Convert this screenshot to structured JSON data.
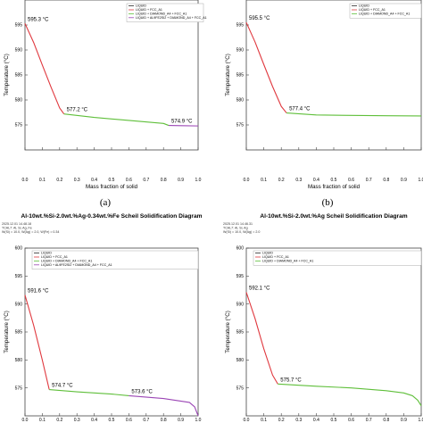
{
  "chart_data": [
    {
      "type": "line",
      "caption": "(a)",
      "title": "",
      "meta": [],
      "xlabel": "Mass fraction of solid",
      "ylabel": "Temperature (°C)",
      "xlim": [
        0,
        1
      ],
      "ylim": [
        570,
        600
      ],
      "xticks": [
        "0.0",
        "0.1",
        "0.2",
        "0.3",
        "0.4",
        "0.5",
        "0.6",
        "0.7",
        "0.8",
        "0.9",
        "1.0"
      ],
      "yticks": [
        "575",
        "580",
        "585",
        "590",
        "595"
      ],
      "grid": false,
      "legend_position": "top-right",
      "series": [
        {
          "name": "LIQUID + FCC_A1",
          "color": "#e0383e",
          "x": [
            0,
            0.05,
            0.1,
            0.15,
            0.2,
            0.225
          ],
          "y": [
            595.3,
            591.5,
            587.0,
            582.6,
            578.4,
            577.2
          ]
        },
        {
          "name": "LIQUID + DIAMOND_A4 + FCC_A1",
          "color": "#5fbf3a",
          "x": [
            0.225,
            0.4,
            0.6,
            0.8,
            0.83
          ],
          "y": [
            577.2,
            576.5,
            575.9,
            575.3,
            574.9
          ]
        },
        {
          "name": "LIQUID + AL9FE2SI2 + DIAMOND_A4 + FCC_A1",
          "color": "#9b45b5",
          "x": [
            0.83,
            0.9,
            1.0
          ],
          "y": [
            574.9,
            574.85,
            574.8
          ]
        }
      ],
      "legend_entries": [
        "LIQUID",
        "LIQUID + FCC_A1",
        "LIQUID + DIAMOND_A4 + FCC_A1",
        "LIQUID + AL9FE2SI2 + DIAMOND_A4 + FCC_A1"
      ],
      "legend_colors": [
        "#2a2a2a",
        "#e0383e",
        "#5fbf3a",
        "#9b45b5"
      ],
      "annotations": [
        {
          "text": "595.3 °C",
          "x": 0.0,
          "y": 595.3
        },
        {
          "text": "577.2 °C",
          "x": 0.225,
          "y": 577.2
        },
        {
          "text": "574.9 °C",
          "x": 0.83,
          "y": 574.9
        }
      ]
    },
    {
      "type": "line",
      "caption": "(b)",
      "title": "",
      "meta": [],
      "xlabel": "Mass fraction of solid",
      "ylabel": "Temperature (°C)",
      "xlim": [
        0,
        1
      ],
      "ylim": [
        570,
        600
      ],
      "xticks": [
        "0.0",
        "0.1",
        "0.2",
        "0.3",
        "0.4",
        "0.5",
        "0.6",
        "0.7",
        "0.8",
        "0.9",
        "1.0"
      ],
      "yticks": [
        "575",
        "580",
        "585",
        "590",
        "595"
      ],
      "grid": false,
      "legend_position": "top-right",
      "series": [
        {
          "name": "LIQUID + FCC_A1",
          "color": "#e0383e",
          "x": [
            0,
            0.05,
            0.1,
            0.15,
            0.2,
            0.23
          ],
          "y": [
            595.5,
            591.6,
            587.1,
            582.7,
            578.7,
            577.4
          ]
        },
        {
          "name": "LIQUID + DIAMOND_A4 + FCC_A1",
          "color": "#5fbf3a",
          "x": [
            0.23,
            0.4,
            0.6,
            0.8,
            1.0
          ],
          "y": [
            577.4,
            577.0,
            576.9,
            576.85,
            576.8
          ]
        }
      ],
      "legend_entries": [
        "LIQUID",
        "LIQUID + FCC_A1",
        "LIQUID + DIAMOND_A4 + FCC_A1"
      ],
      "legend_colors": [
        "#2a2a2a",
        "#e0383e",
        "#5fbf3a"
      ],
      "annotations": [
        {
          "text": "595.5 °C",
          "x": 0.0,
          "y": 595.5
        },
        {
          "text": "577.4 °C",
          "x": 0.23,
          "y": 577.4
        }
      ]
    },
    {
      "type": "line",
      "caption": "",
      "title": "Al-10wt.%Si-2.0wt.%Ag-0.34wt.%Fe Scheil Solidification Diagram",
      "meta": [
        "2025.12.01 14.48.18",
        "TCAL7: Al, Si, Ag, Fe",
        "W(Si) = 10.0, W(Ag) = 2.0, W(Fe) = 0.34"
      ],
      "xlabel": "",
      "ylabel": "Temperature (°C)",
      "xlim": [
        0,
        1
      ],
      "ylim": [
        570,
        600
      ],
      "xticks": [
        "0.0",
        "0.1",
        "0.2",
        "0.3",
        "0.4",
        "0.5",
        "0.6",
        "0.7",
        "0.8",
        "0.9",
        "1.0"
      ],
      "yticks": [
        "575",
        "580",
        "585",
        "590",
        "595",
        "600"
      ],
      "grid": false,
      "legend_position": "top-right",
      "series": [
        {
          "name": "LIQUID + FCC_A1",
          "color": "#e0383e",
          "x": [
            0,
            0.05,
            0.1,
            0.14
          ],
          "y": [
            591.6,
            586.2,
            580.0,
            574.7
          ]
        },
        {
          "name": "LIQUID + DIAMOND_A4 + FCC_A1",
          "color": "#5fbf3a",
          "x": [
            0.14,
            0.3,
            0.5,
            0.6
          ],
          "y": [
            574.7,
            574.3,
            573.9,
            573.6
          ]
        },
        {
          "name": "LIQUID + AL9FE2SI2 + DIAMOND_A4 + FCC_A1",
          "color": "#9b45b5",
          "x": [
            0.6,
            0.8,
            0.95,
            0.98,
            0.99,
            1.0
          ],
          "y": [
            573.6,
            573.1,
            572.4,
            571.6,
            570.8,
            570.0
          ]
        }
      ],
      "legend_entries": [
        "LIQUID",
        "LIQUID + FCC_A1",
        "LIQUID + DIAMOND_A4 + FCC_A1",
        "LIQUID + AL9FE2SI2 + DIAMOND_A4 + FCC_A1"
      ],
      "legend_colors": [
        "#2a2a2a",
        "#e0383e",
        "#5fbf3a",
        "#9b45b5"
      ],
      "annotations": [
        {
          "text": "591.6 °C",
          "x": 0.0,
          "y": 591.6
        },
        {
          "text": "574.7 °C",
          "x": 0.14,
          "y": 574.7
        },
        {
          "text": "573.6 °C",
          "x": 0.6,
          "y": 573.6
        }
      ]
    },
    {
      "type": "line",
      "caption": "",
      "title": "Al-10wt.%Si-2.0wt.%Ag Scheil Solidification Diagram",
      "meta": [
        "2025.12.01 14.46.31",
        "TCAL7: Al, Si, Ag",
        "W(Si) = 10.0, W(Ag) = 2.0"
      ],
      "xlabel": "",
      "ylabel": "Temperature (°C)",
      "xlim": [
        0,
        1
      ],
      "ylim": [
        570,
        600
      ],
      "xticks": [
        "0.0",
        "0.1",
        "0.2",
        "0.3",
        "0.4",
        "0.5",
        "0.6",
        "0.7",
        "0.8",
        "0.9",
        "1.0"
      ],
      "yticks": [
        "575",
        "580",
        "585",
        "590",
        "595",
        "600"
      ],
      "grid": false,
      "legend_position": "top-right",
      "series": [
        {
          "name": "LIQUID + FCC_A1",
          "color": "#e0383e",
          "x": [
            0,
            0.05,
            0.1,
            0.15,
            0.18
          ],
          "y": [
            592.1,
            587.4,
            582.0,
            577.3,
            575.7
          ]
        },
        {
          "name": "LIQUID + DIAMOND_A4 + FCC_A1",
          "color": "#5fbf3a",
          "x": [
            0.18,
            0.4,
            0.6,
            0.8,
            0.9,
            0.95,
            0.98,
            1.0
          ],
          "y": [
            575.7,
            575.3,
            575.0,
            574.5,
            574.1,
            573.6,
            572.8,
            571.8
          ]
        }
      ],
      "legend_entries": [
        "LIQUID",
        "LIQUID + FCC_A1",
        "LIQUID + DIAMOND_A4 + FCC_A1"
      ],
      "legend_colors": [
        "#2a2a2a",
        "#e0383e",
        "#5fbf3a"
      ],
      "annotations": [
        {
          "text": "592.1 °C",
          "x": 0.0,
          "y": 592.1
        },
        {
          "text": "575.7 °C",
          "x": 0.18,
          "y": 575.7
        }
      ]
    }
  ]
}
